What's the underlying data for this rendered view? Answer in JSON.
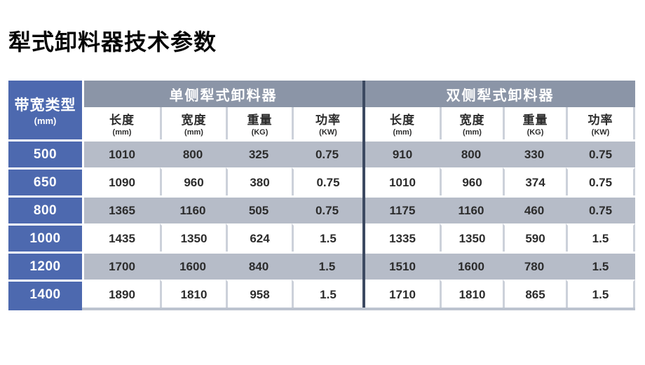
{
  "page": {
    "title": "犁式卸料器技术参数"
  },
  "colors": {
    "blue": "#4d69af",
    "header-gray": "#8b95a7",
    "row-gray": "#b6bcc8",
    "divider": "#3c4961",
    "cell-line": "#ccd1da",
    "edge": "#bcc3cf",
    "text-dark": "#2c2c2c"
  },
  "table": {
    "row_header": {
      "label": "带宽类型",
      "unit": "(mm)"
    },
    "sections": [
      {
        "title": "单侧犁式卸料器",
        "columns": [
          {
            "label": "长度",
            "unit": "(mm)"
          },
          {
            "label": "宽度",
            "unit": "(mm)"
          },
          {
            "label": "重量",
            "unit": "(KG)"
          },
          {
            "label": "功率",
            "unit": "(KW)"
          }
        ]
      },
      {
        "title": "双侧犁式卸料器",
        "columns": [
          {
            "label": "长度",
            "unit": "(mm)"
          },
          {
            "label": "宽度",
            "unit": "(mm)"
          },
          {
            "label": "重量",
            "unit": "(KG)"
          },
          {
            "label": "功率",
            "unit": "(KW)"
          }
        ]
      }
    ],
    "rows": [
      {
        "band": "500",
        "single": [
          "1010",
          "800",
          "325",
          "0.75"
        ],
        "double": [
          "910",
          "800",
          "330",
          "0.75"
        ]
      },
      {
        "band": "650",
        "single": [
          "1090",
          "960",
          "380",
          "0.75"
        ],
        "double": [
          "1010",
          "960",
          "374",
          "0.75"
        ]
      },
      {
        "band": "800",
        "single": [
          "1365",
          "1160",
          "505",
          "0.75"
        ],
        "double": [
          "1175",
          "1160",
          "460",
          "0.75"
        ]
      },
      {
        "band": "1000",
        "single": [
          "1435",
          "1350",
          "624",
          "1.5"
        ],
        "double": [
          "1335",
          "1350",
          "590",
          "1.5"
        ]
      },
      {
        "band": "1200",
        "single": [
          "1700",
          "1600",
          "840",
          "1.5"
        ],
        "double": [
          "1510",
          "1600",
          "780",
          "1.5"
        ]
      },
      {
        "band": "1400",
        "single": [
          "1890",
          "1810",
          "958",
          "1.5"
        ],
        "double": [
          "1710",
          "1810",
          "865",
          "1.5"
        ]
      }
    ]
  }
}
